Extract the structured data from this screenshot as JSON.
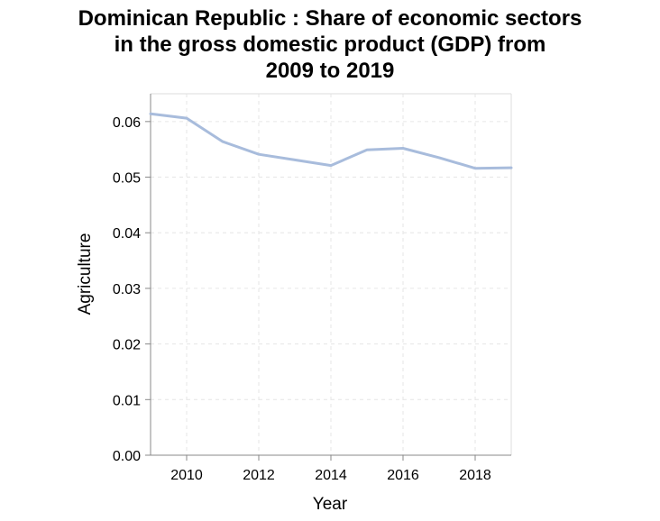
{
  "chart_data": {
    "type": "line",
    "title": "Dominican Republic : Share of economic sectors in the gross domestic product (GDP) from 2009 to 2019",
    "title_lines": [
      "Dominican Republic : Share of economic sectors",
      "in the gross domestic product (GDP) from",
      "2009 to 2019"
    ],
    "xlabel": "Year",
    "ylabel": "Agriculture",
    "xlim": [
      2009,
      2019
    ],
    "ylim": [
      0,
      0.065
    ],
    "x_ticks": [
      2010,
      2012,
      2014,
      2016,
      2018
    ],
    "y_ticks": [
      0.0,
      0.01,
      0.02,
      0.03,
      0.04,
      0.05,
      0.06
    ],
    "y_tick_labels": [
      "0.00",
      "0.01",
      "0.02",
      "0.03",
      "0.04",
      "0.05",
      "0.06"
    ],
    "grid": true,
    "line_color": "#a8bcdc",
    "series": [
      {
        "x": [
          2009,
          2010,
          2011,
          2012,
          2013,
          2014,
          2015,
          2016,
          2017,
          2018,
          2019
        ],
        "values": [
          0.0614,
          0.0606,
          0.0564,
          0.0541,
          0.0531,
          0.0521,
          0.0549,
          0.0552,
          0.0535,
          0.0516,
          0.0517
        ]
      }
    ]
  }
}
